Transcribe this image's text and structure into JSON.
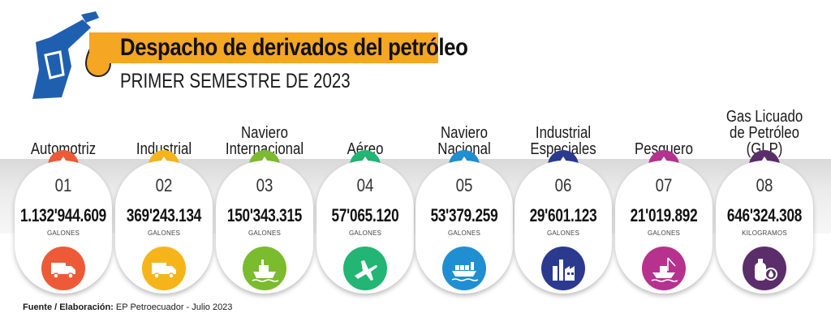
{
  "header": {
    "title": "Despacho de derivados del petróleo",
    "subtitle": "PRIMER SEMESTRE DE 2023",
    "title_bar_color": "#f5a623",
    "pump_icon_color": "#1f5fb0",
    "drop_icon_color": "#f5a623"
  },
  "items": [
    {
      "label": "Automotriz",
      "number": "01",
      "value": "1.132'944.609",
      "unit": "GALONES",
      "color": "#ee5a38",
      "icon": "truck-icon"
    },
    {
      "label": "Industrial",
      "number": "02",
      "value": "369'243.134",
      "unit": "GALONES",
      "color": "#f5b51a",
      "icon": "truck-icon"
    },
    {
      "label": "Naviero\nInternacional",
      "number": "03",
      "value": "150'343.315",
      "unit": "GALONES",
      "color": "#7bbb2e",
      "icon": "ship-icon"
    },
    {
      "label": "Aéreo",
      "number": "04",
      "value": "57'065.120",
      "unit": "GALONES",
      "color": "#22b573",
      "icon": "airplane-icon"
    },
    {
      "label": "Naviero\nNacional",
      "number": "05",
      "value": "53'379.259",
      "unit": "GALONES",
      "color": "#1f8fd1",
      "icon": "cargo-ship-icon"
    },
    {
      "label": "Industrial\nEspeciales",
      "number": "06",
      "value": "29'601.123",
      "unit": "GALONES",
      "color": "#2b3a8f",
      "icon": "factory-icon"
    },
    {
      "label": "Pesquero",
      "number": "07",
      "value": "21'019.892",
      "unit": "GALONES",
      "color": "#b7318f",
      "icon": "fishing-boat-icon"
    },
    {
      "label": "Gas Licuado\nde Petróleo (GLP)",
      "number": "08",
      "value": "646'324.308",
      "unit": "KILOGRAMOS",
      "color": "#5b2d6b",
      "icon": "gas-cylinder-icon"
    }
  ],
  "footer": {
    "source_label": "Fuente / Elaboración:",
    "source_text": "EP Petroecuador - Julio 2023"
  }
}
